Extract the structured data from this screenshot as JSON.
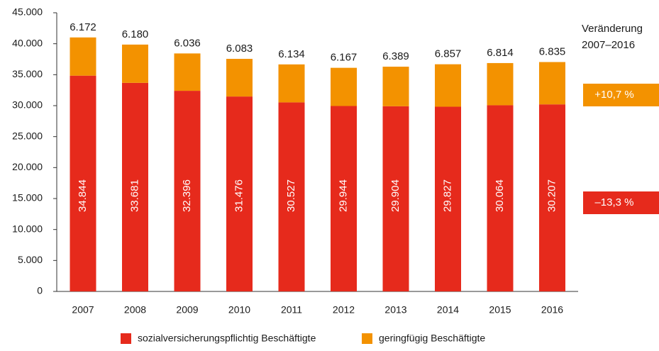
{
  "chart_data": {
    "type": "bar",
    "stacked": true,
    "categories": [
      "2007",
      "2008",
      "2009",
      "2010",
      "2011",
      "2012",
      "2013",
      "2014",
      "2015",
      "2016"
    ],
    "series": [
      {
        "name": "sozialversicherungspflichtig Beschäftigte",
        "color": "#e62a1c",
        "values": [
          34844,
          33681,
          32396,
          31476,
          30527,
          29944,
          29904,
          29827,
          30064,
          30207
        ],
        "value_labels": [
          "34.844",
          "33.681",
          "32.396",
          "31.476",
          "30.527",
          "29.944",
          "29.904",
          "29.827",
          "30.064",
          "30.207"
        ]
      },
      {
        "name": "geringfügig Beschäftigte",
        "color": "#f39200",
        "values": [
          6172,
          6180,
          6036,
          6083,
          6134,
          6167,
          6389,
          6857,
          6814,
          6835
        ],
        "value_labels": [
          "6.172",
          "6.180",
          "6.036",
          "6.083",
          "6.134",
          "6.167",
          "6.389",
          "6.857",
          "6.814",
          "6.835"
        ]
      }
    ],
    "ylim": [
      0,
      45000
    ],
    "yticks": [
      0,
      {
        "value": 5000,
        "label": "5.000"
      },
      {
        "value": 10000,
        "label": "10.000"
      },
      {
        "value": 15000,
        "label": "15.000"
      },
      {
        "value": 20000,
        "label": "20.000"
      },
      {
        "value": 25000,
        "label": "25.000"
      },
      {
        "value": 30000,
        "label": "30.000"
      },
      {
        "value": 35000,
        "label": "35.000"
      },
      {
        "value": 40000,
        "label": "40.000"
      },
      {
        "value": 45000,
        "label": "45.000"
      }
    ],
    "grid": false,
    "legend": "bottom",
    "change_title": [
      "Veränderung",
      "2007–2016"
    ],
    "changes": [
      "–13,3 %",
      "+10,7 %"
    ]
  }
}
